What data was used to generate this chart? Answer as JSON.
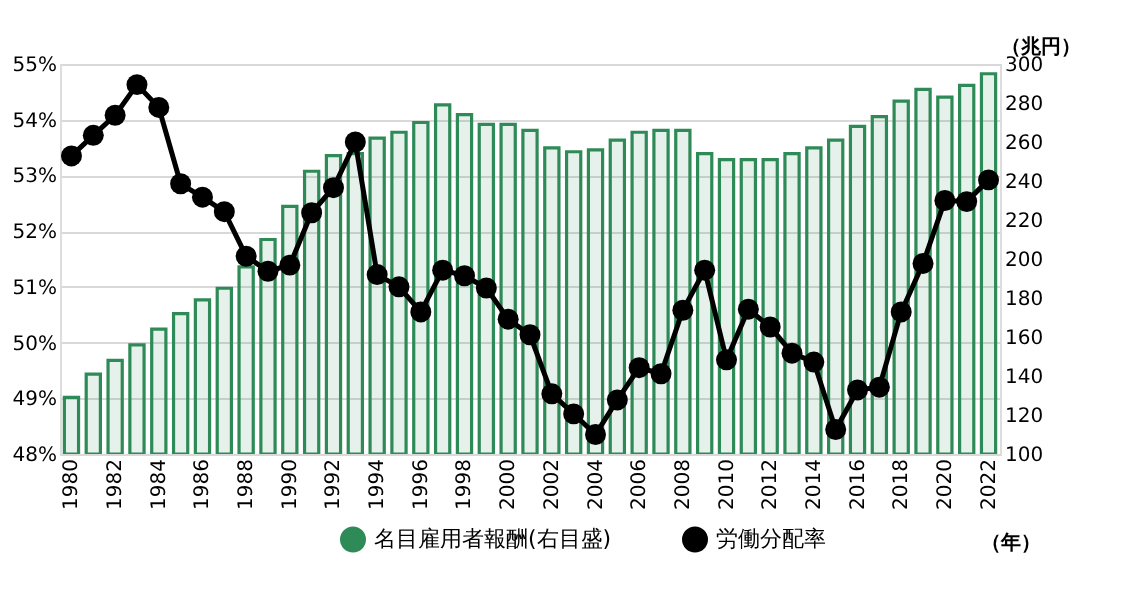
{
  "chart_data": {
    "type": "bar",
    "xlabel": "（年）",
    "y2label": "（兆円）",
    "categories": [
      "1980",
      null,
      "1982",
      null,
      "1984",
      null,
      "1986",
      null,
      "1988",
      null,
      "1990",
      null,
      "1992",
      null,
      "1994",
      null,
      "1996",
      null,
      "1998",
      null,
      "2000",
      null,
      "2002",
      null,
      "2004",
      null,
      "2006",
      null,
      "2008",
      null,
      "2010",
      null,
      "2012",
      null,
      "2014",
      null,
      "2016",
      null,
      "2018",
      null,
      "2020",
      null,
      "2022"
    ],
    "series": [
      {
        "name": "名目雇用者報酬(右目盛)",
        "axis": "y2",
        "color": "#2e8b57",
        "values": [
          129,
          141,
          148,
          156,
          164,
          172,
          179,
          185,
          196,
          210,
          227,
          245,
          253,
          254,
          262,
          265,
          270,
          279,
          274,
          269,
          269,
          266,
          257,
          255,
          256,
          261,
          265,
          266,
          266,
          254,
          251,
          251,
          251,
          254,
          257,
          261,
          268,
          273,
          281,
          287,
          283,
          289,
          295
        ]
      },
      {
        "name": "労働分配率",
        "type": "line",
        "color": "#000000",
        "values": [
          53.35,
          53.72,
          54.08,
          54.63,
          54.22,
          52.85,
          52.61,
          52.35,
          51.55,
          51.28,
          51.39,
          52.33,
          52.78,
          53.6,
          51.22,
          51.0,
          50.55,
          51.3,
          51.2,
          50.98,
          50.42,
          50.14,
          49.08,
          48.72,
          48.35,
          48.97,
          49.55,
          49.44,
          50.58,
          51.3,
          49.69,
          50.6,
          50.28,
          49.81,
          49.65,
          48.44,
          49.15,
          49.2,
          50.55,
          51.42,
          52.55,
          52.53,
          52.92
        ]
      }
    ],
    "ylim": [
      48,
      55
    ],
    "yticks": [
      {
        "value": 48,
        "label": "48%"
      },
      {
        "value": 49,
        "label": "49%"
      },
      {
        "value": 50,
        "label": "50%"
      },
      {
        "value": 51,
        "label": "51%"
      },
      {
        "value": 52,
        "label": "52%"
      },
      {
        "value": 53,
        "label": "53%"
      },
      {
        "value": 54,
        "label": "54%"
      },
      {
        "value": 55,
        "label": "55%"
      }
    ],
    "y2lim": [
      100,
      300
    ],
    "y2ticks": [
      100,
      120,
      140,
      160,
      180,
      200,
      220,
      240,
      260,
      280,
      300
    ],
    "grid": "y",
    "legend": "bottom",
    "marker": "circle",
    "line_style": "solid"
  }
}
